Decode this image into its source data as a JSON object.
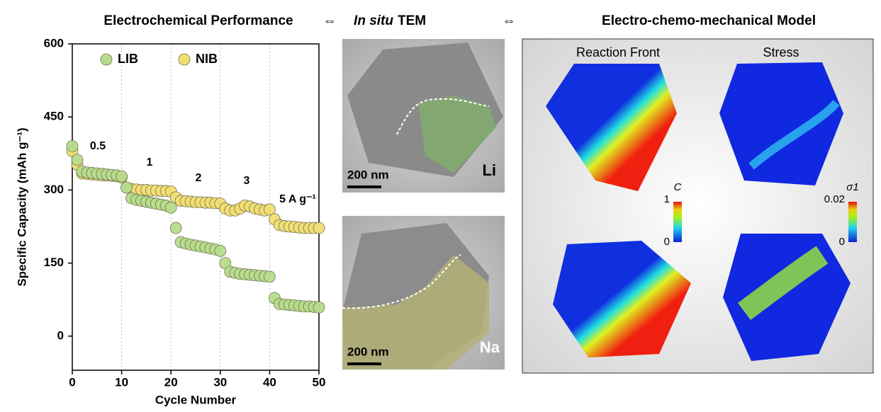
{
  "chart_data": {
    "type": "scatter",
    "x_label": "Cycle Number",
    "y_label": "Specific Capacity (mAh g⁻¹)",
    "xlim": [
      0,
      50
    ],
    "xticks": [
      0,
      10,
      20,
      30,
      40,
      50
    ],
    "ylim": [
      -70,
      600
    ],
    "yticks": [
      0,
      150,
      300,
      450,
      600
    ],
    "x_grid": true,
    "legend": "top-left",
    "x": [
      0,
      1,
      2,
      3,
      4,
      5,
      6,
      7,
      8,
      9,
      10,
      11,
      12,
      13,
      14,
      15,
      16,
      17,
      18,
      19,
      20,
      21,
      22,
      23,
      24,
      25,
      26,
      27,
      28,
      29,
      30,
      31,
      32,
      33,
      34,
      35,
      36,
      37,
      38,
      39,
      40,
      41,
      42,
      43,
      44,
      45,
      46,
      47,
      48,
      49,
      50
    ],
    "series": [
      {
        "name": "NIB",
        "color": "#f2df74",
        "values": [
          380,
          352,
          334,
          333,
          332,
          331,
          330,
          330,
          329,
          328,
          326,
          305,
          302,
          301,
          300,
          300,
          299,
          299,
          298,
          298,
          297,
          285,
          278,
          277,
          276,
          275,
          275,
          274,
          274,
          273,
          272,
          262,
          258,
          258,
          262,
          268,
          266,
          262,
          260,
          258,
          260,
          240,
          228,
          226,
          225,
          224,
          223,
          222,
          222,
          222,
          222
        ]
      },
      {
        "name": "LIB",
        "color": "#b6dc8c",
        "values": [
          390,
          362,
          338,
          336,
          335,
          334,
          333,
          332,
          331,
          330,
          328,
          305,
          283,
          280,
          278,
          276,
          274,
          272,
          270,
          268,
          264,
          222,
          193,
          190,
          188,
          186,
          184,
          182,
          180,
          178,
          175,
          150,
          132,
          130,
          128,
          127,
          126,
          125,
          124,
          123,
          122,
          78,
          66,
          65,
          64,
          63,
          62,
          61,
          61,
          60,
          59
        ]
      }
    ],
    "annotations": [
      "0.5",
      "1",
      "2",
      "3",
      "5 A g⁻¹"
    ]
  },
  "header": {
    "left": "Electrochemical Performance",
    "arrow1": "⇔",
    "middle_italic": "In situ",
    "middle": "TEM",
    "arrow2": "⇔",
    "right": "Electro-chemo-mechanical Model"
  },
  "tem": {
    "scale_top": "200 nm",
    "label_top": "Li",
    "scale_bottom": "200 nm",
    "label_bottom": "Na"
  },
  "model": {
    "col1": "Reaction Front",
    "col2": "Stress",
    "cbar1_title": "C",
    "cbar1_max": "1",
    "cbar1_min": "0",
    "cbar2_title": "σ1",
    "cbar2_max": "0.02",
    "cbar2_min": "0"
  }
}
